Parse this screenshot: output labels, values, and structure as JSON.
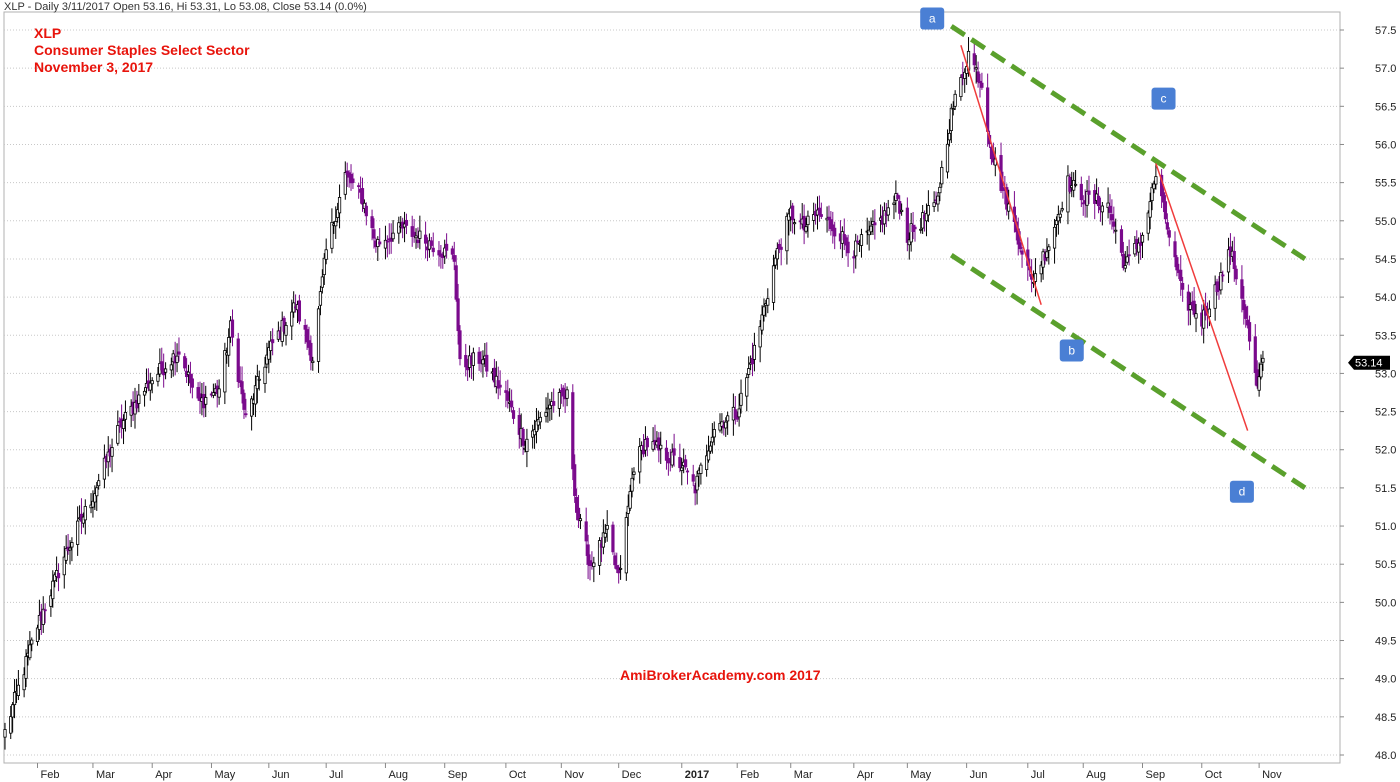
{
  "header": {
    "info": "XLP - Daily 3/11/2017 Open 53.16, Hi 53.31, Lo 53.08, Close 53.14 (0.0%)"
  },
  "title_block": {
    "line1": "XLP",
    "line2": "Consumer Staples Select Sector",
    "line3": "November 3, 2017"
  },
  "watermark": "AmiBrokerAcademy.com  2017",
  "colors": {
    "up_candle": "#000000",
    "down_candle": "#7a0a8c",
    "trendline_green": "#5aa02c",
    "trendline_red": "#f03c3c",
    "label_box": "#4a7fd4",
    "annotation_text": "#e8140c",
    "price_tag_bg": "#000000"
  },
  "chart_data": {
    "type": "candlestick",
    "symbol": "XLP",
    "ylim": [
      48.0,
      57.5
    ],
    "yticks": [
      48.0,
      48.5,
      49.0,
      49.5,
      50.0,
      50.5,
      51.0,
      51.5,
      52.0,
      52.5,
      53.0,
      53.5,
      54.0,
      54.5,
      55.0,
      55.5,
      56.0,
      56.5,
      57.0,
      57.5
    ],
    "x_range": [
      "2016-01-15",
      "2017-11-25"
    ],
    "x_ticks": [
      {
        "label": "Feb",
        "date": "2016-02-01"
      },
      {
        "label": "Mar",
        "date": "2016-03-01"
      },
      {
        "label": "Apr",
        "date": "2016-04-01"
      },
      {
        "label": "May",
        "date": "2016-05-02"
      },
      {
        "label": "Jun",
        "date": "2016-06-01"
      },
      {
        "label": "Jul",
        "date": "2016-07-01"
      },
      {
        "label": "Aug",
        "date": "2016-08-01"
      },
      {
        "label": "Sep",
        "date": "2016-09-01"
      },
      {
        "label": "Oct",
        "date": "2016-10-03"
      },
      {
        "label": "Nov",
        "date": "2016-11-01"
      },
      {
        "label": "Dec",
        "date": "2016-12-01"
      },
      {
        "label": "2017",
        "date": "2017-01-03",
        "bold": true
      },
      {
        "label": "Feb",
        "date": "2017-02-01"
      },
      {
        "label": "Mar",
        "date": "2017-03-01"
      },
      {
        "label": "Apr",
        "date": "2017-04-03"
      },
      {
        "label": "May",
        "date": "2017-05-01"
      },
      {
        "label": "Jun",
        "date": "2017-06-01"
      },
      {
        "label": "Jul",
        "date": "2017-07-03"
      },
      {
        "label": "Aug",
        "date": "2017-08-01"
      },
      {
        "label": "Sep",
        "date": "2017-09-01"
      },
      {
        "label": "Oct",
        "date": "2017-10-02"
      },
      {
        "label": "Nov",
        "date": "2017-11-01"
      }
    ],
    "last_close": "53.14",
    "last_close_value": 53.14,
    "close_anchors": [
      [
        "2016-01-15",
        48.3
      ],
      [
        "2016-02-01",
        49.7
      ],
      [
        "2016-02-15",
        50.6
      ],
      [
        "2016-03-01",
        51.4
      ],
      [
        "2016-03-15",
        52.3
      ],
      [
        "2016-03-31",
        52.9
      ],
      [
        "2016-04-15",
        53.3
      ],
      [
        "2016-04-25",
        52.6
      ],
      [
        "2016-05-06",
        52.8
      ],
      [
        "2016-05-12",
        53.6
      ],
      [
        "2016-05-20",
        52.4
      ],
      [
        "2016-06-01",
        53.3
      ],
      [
        "2016-06-15",
        53.9
      ],
      [
        "2016-06-24",
        53.2
      ],
      [
        "2016-07-01",
        54.6
      ],
      [
        "2016-07-11",
        55.6
      ],
      [
        "2016-07-20",
        55.3
      ],
      [
        "2016-07-27",
        54.7
      ],
      [
        "2016-08-10",
        54.9
      ],
      [
        "2016-08-25",
        54.7
      ],
      [
        "2016-09-06",
        54.5
      ],
      [
        "2016-09-09",
        53.1
      ],
      [
        "2016-09-20",
        53.2
      ],
      [
        "2016-10-03",
        52.7
      ],
      [
        "2016-10-13",
        52.1
      ],
      [
        "2016-10-26",
        52.6
      ],
      [
        "2016-11-04",
        52.7
      ],
      [
        "2016-11-09",
        51.2
      ],
      [
        "2016-11-16",
        50.5
      ],
      [
        "2016-11-25",
        50.9
      ],
      [
        "2016-12-01",
        50.3
      ],
      [
        "2016-12-09",
        51.8
      ],
      [
        "2016-12-15",
        52.1
      ],
      [
        "2017-01-03",
        51.8
      ],
      [
        "2017-01-10",
        51.5
      ],
      [
        "2017-01-20",
        52.3
      ],
      [
        "2017-02-01",
        52.5
      ],
      [
        "2017-02-10",
        53.3
      ],
      [
        "2017-02-21",
        54.5
      ],
      [
        "2017-03-01",
        55.1
      ],
      [
        "2017-03-08",
        54.9
      ],
      [
        "2017-03-15",
        55.1
      ],
      [
        "2017-03-24",
        54.9
      ],
      [
        "2017-04-03",
        54.6
      ],
      [
        "2017-04-17",
        55.0
      ],
      [
        "2017-04-26",
        55.3
      ],
      [
        "2017-05-01",
        54.8
      ],
      [
        "2017-05-16",
        55.2
      ],
      [
        "2017-05-24",
        56.4
      ],
      [
        "2017-06-02",
        57.2
      ],
      [
        "2017-06-09",
        56.8
      ],
      [
        "2017-06-14",
        55.9
      ],
      [
        "2017-06-20",
        55.4
      ],
      [
        "2017-06-28",
        54.8
      ],
      [
        "2017-07-05",
        54.2
      ],
      [
        "2017-07-14",
        54.7
      ],
      [
        "2017-07-24",
        55.5
      ],
      [
        "2017-08-02",
        55.3
      ],
      [
        "2017-08-14",
        55.2
      ],
      [
        "2017-08-23",
        54.4
      ],
      [
        "2017-09-01",
        54.8
      ],
      [
        "2017-09-08",
        55.6
      ],
      [
        "2017-09-15",
        54.8
      ],
      [
        "2017-09-22",
        54.0
      ],
      [
        "2017-10-02",
        53.7
      ],
      [
        "2017-10-11",
        54.2
      ],
      [
        "2017-10-17",
        54.6
      ],
      [
        "2017-10-24",
        53.9
      ],
      [
        "2017-10-31",
        52.8
      ],
      [
        "2017-11-03",
        53.14
      ]
    ],
    "trendlines": [
      {
        "name": "upper-channel",
        "color": "green",
        "dashed": true,
        "from": [
          "2017-05-24",
          57.55
        ],
        "to": [
          "2017-11-25",
          54.5
        ]
      },
      {
        "name": "lower-channel",
        "color": "green",
        "dashed": true,
        "from": [
          "2017-05-24",
          54.55
        ],
        "to": [
          "2017-11-25",
          51.5
        ]
      },
      {
        "name": "decline-1",
        "color": "red",
        "dashed": false,
        "from": [
          "2017-05-29",
          57.3
        ],
        "to": [
          "2017-07-10",
          53.9
        ]
      },
      {
        "name": "decline-2",
        "color": "red",
        "dashed": false,
        "from": [
          "2017-09-08",
          55.75
        ],
        "to": [
          "2017-10-26",
          52.25
        ]
      }
    ],
    "labels": [
      {
        "text": "a",
        "date": "2017-05-14",
        "value": 57.65
      },
      {
        "text": "b",
        "date": "2017-07-26",
        "value": 53.3
      },
      {
        "text": "c",
        "date": "2017-09-12",
        "value": 56.6
      },
      {
        "text": "d",
        "date": "2017-10-23",
        "value": 51.45
      }
    ],
    "grid": "horizontal dotted",
    "y_axis_position": "right"
  }
}
